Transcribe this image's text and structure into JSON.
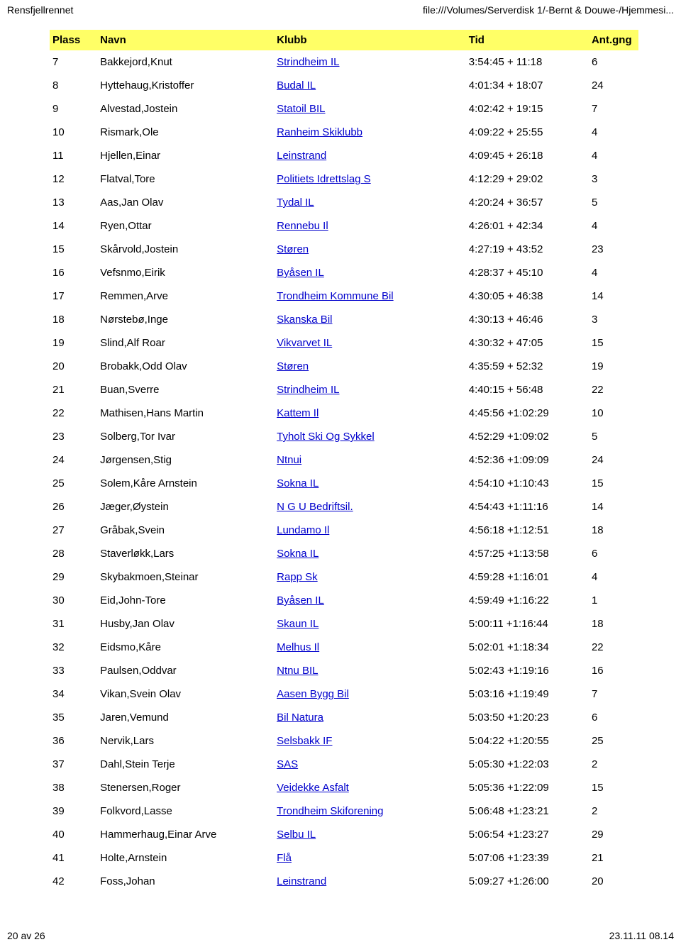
{
  "header": {
    "left": "Rensfjellrennet",
    "right": "file:///Volumes/Serverdisk 1/-Bernt & Douwe-/Hjemmesi..."
  },
  "table": {
    "columns": [
      "Plass",
      "Navn",
      "Klubb",
      "Tid",
      "Ant.gng"
    ],
    "rows": [
      {
        "plass": "7",
        "navn": "Bakkejord,Knut",
        "klubb": "Strindheim IL",
        "tid": "3:54:45 + 11:18",
        "ant": "6"
      },
      {
        "plass": "8",
        "navn": "Hyttehaug,Kristoffer",
        "klubb": "Budal IL",
        "tid": "4:01:34 + 18:07",
        "ant": "24"
      },
      {
        "plass": "9",
        "navn": "Alvestad,Jostein",
        "klubb": "Statoil BIL",
        "tid": "4:02:42 + 19:15",
        "ant": "7"
      },
      {
        "plass": "10",
        "navn": "Rismark,Ole",
        "klubb": "Ranheim Skiklubb",
        "tid": "4:09:22 + 25:55",
        "ant": "4"
      },
      {
        "plass": "11",
        "navn": "Hjellen,Einar",
        "klubb": "Leinstrand",
        "tid": "4:09:45 + 26:18",
        "ant": "4"
      },
      {
        "plass": "12",
        "navn": "Flatval,Tore",
        "klubb": "Politiets Idrettslag S",
        "tid": "4:12:29 + 29:02",
        "ant": "3"
      },
      {
        "plass": "13",
        "navn": "Aas,Jan Olav",
        "klubb": "Tydal IL",
        "tid": "4:20:24 + 36:57",
        "ant": "5"
      },
      {
        "plass": "14",
        "navn": "Ryen,Ottar",
        "klubb": "Rennebu Il",
        "tid": "4:26:01 + 42:34",
        "ant": "4"
      },
      {
        "plass": "15",
        "navn": "Skårvold,Jostein",
        "klubb": "Støren",
        "tid": "4:27:19 + 43:52",
        "ant": "23"
      },
      {
        "plass": "16",
        "navn": "Vefsnmo,Eirik",
        "klubb": "Byåsen IL",
        "tid": "4:28:37 + 45:10",
        "ant": "4"
      },
      {
        "plass": "17",
        "navn": "Remmen,Arve",
        "klubb": "Trondheim Kommune Bil",
        "tid": "4:30:05 + 46:38",
        "ant": "14"
      },
      {
        "plass": "18",
        "navn": "Nørstebø,Inge",
        "klubb": "Skanska Bil",
        "tid": "4:30:13 + 46:46",
        "ant": "3"
      },
      {
        "plass": "19",
        "navn": "Slind,Alf Roar",
        "klubb": "Vikvarvet IL",
        "tid": "4:30:32 + 47:05",
        "ant": "15"
      },
      {
        "plass": "20",
        "navn": "Brobakk,Odd Olav",
        "klubb": "Støren",
        "tid": "4:35:59 + 52:32",
        "ant": "19"
      },
      {
        "plass": "21",
        "navn": "Buan,Sverre",
        "klubb": "Strindheim IL",
        "tid": "4:40:15 + 56:48",
        "ant": "22"
      },
      {
        "plass": "22",
        "navn": "Mathisen,Hans Martin",
        "klubb": "Kattem Il",
        "tid": "4:45:56 +1:02:29",
        "ant": "10"
      },
      {
        "plass": "23",
        "navn": "Solberg,Tor Ivar",
        "klubb": "Tyholt Ski Og Sykkel",
        "tid": "4:52:29 +1:09:02",
        "ant": "5"
      },
      {
        "plass": "24",
        "navn": "Jørgensen,Stig",
        "klubb": "Ntnui",
        "tid": "4:52:36 +1:09:09",
        "ant": "24"
      },
      {
        "plass": "25",
        "navn": "Solem,Kåre Arnstein",
        "klubb": "Sokna IL",
        "tid": "4:54:10 +1:10:43",
        "ant": "15"
      },
      {
        "plass": "26",
        "navn": "Jæger,Øystein",
        "klubb": "N G U Bedriftsil.",
        "tid": "4:54:43 +1:11:16",
        "ant": "14"
      },
      {
        "plass": "27",
        "navn": "Gråbak,Svein",
        "klubb": "Lundamo Il",
        "tid": "4:56:18 +1:12:51",
        "ant": "18"
      },
      {
        "plass": "28",
        "navn": "Staverløkk,Lars",
        "klubb": "Sokna IL",
        "tid": "4:57:25 +1:13:58",
        "ant": "6"
      },
      {
        "plass": "29",
        "navn": "Skybakmoen,Steinar",
        "klubb": "Rapp Sk",
        "tid": "4:59:28 +1:16:01",
        "ant": "4"
      },
      {
        "plass": "30",
        "navn": "Eid,John-Tore",
        "klubb": "Byåsen IL",
        "tid": "4:59:49 +1:16:22",
        "ant": "1"
      },
      {
        "plass": "31",
        "navn": "Husby,Jan Olav",
        "klubb": "Skaun IL",
        "tid": "5:00:11 +1:16:44",
        "ant": "18"
      },
      {
        "plass": "32",
        "navn": "Eidsmo,Kåre",
        "klubb": "Melhus Il",
        "tid": "5:02:01 +1:18:34",
        "ant": "22"
      },
      {
        "plass": "33",
        "navn": "Paulsen,Oddvar",
        "klubb": "Ntnu BIL",
        "tid": "5:02:43 +1:19:16",
        "ant": "16"
      },
      {
        "plass": "34",
        "navn": "Vikan,Svein Olav",
        "klubb": "Aasen Bygg Bil",
        "tid": "5:03:16 +1:19:49",
        "ant": "7"
      },
      {
        "plass": "35",
        "navn": "Jaren,Vemund",
        "klubb": "Bil Natura",
        "tid": "5:03:50 +1:20:23",
        "ant": "6"
      },
      {
        "plass": "36",
        "navn": "Nervik,Lars",
        "klubb": "Selsbakk IF",
        "tid": "5:04:22 +1:20:55",
        "ant": "25"
      },
      {
        "plass": "37",
        "navn": "Dahl,Stein Terje",
        "klubb": "SAS",
        "tid": "5:05:30 +1:22:03",
        "ant": "2"
      },
      {
        "plass": "38",
        "navn": "Stenersen,Roger",
        "klubb": "Veidekke Asfalt",
        "tid": "5:05:36 +1:22:09",
        "ant": "15"
      },
      {
        "plass": "39",
        "navn": "Folkvord,Lasse",
        "klubb": "Trondheim Skiforening",
        "tid": "5:06:48 +1:23:21",
        "ant": "2"
      },
      {
        "plass": "40",
        "navn": "Hammerhaug,Einar Arve",
        "klubb": "Selbu IL",
        "tid": "5:06:54 +1:23:27",
        "ant": "29"
      },
      {
        "plass": "41",
        "navn": "Holte,Arnstein",
        "klubb": "Flå",
        "tid": "5:07:06 +1:23:39",
        "ant": "21"
      },
      {
        "plass": "42",
        "navn": "Foss,Johan",
        "klubb": "Leinstrand",
        "tid": "5:09:27 +1:26:00",
        "ant": "20"
      }
    ]
  },
  "footer": {
    "left": "20 av 26",
    "right": "23.11.11 08.14"
  },
  "colors": {
    "header_bg": "#ffff66",
    "link": "#0000cc",
    "text": "#000000",
    "background": "#ffffff"
  }
}
